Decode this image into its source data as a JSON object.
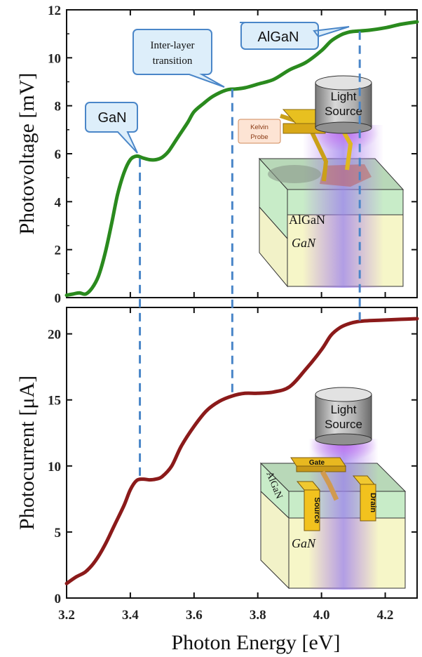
{
  "chart_data": [
    {
      "type": "line",
      "panel": "top",
      "ylabel": "Photovoltage [mV]",
      "xlim": [
        3.2,
        4.3
      ],
      "ylim": [
        0,
        12
      ],
      "yticks": [
        0,
        2,
        4,
        6,
        8,
        10,
        12
      ],
      "grid": false,
      "color": "#2a8a1e",
      "series": [
        {
          "x": [
            3.2,
            3.22,
            3.24,
            3.26,
            3.28,
            3.3,
            3.32,
            3.34,
            3.36,
            3.38,
            3.4,
            3.42,
            3.44,
            3.46,
            3.48,
            3.5,
            3.52,
            3.55,
            3.58,
            3.6,
            3.63,
            3.66,
            3.7,
            3.73,
            3.76,
            3.8,
            3.85,
            3.9,
            3.95,
            4.0,
            4.03,
            4.06,
            4.08,
            4.1,
            4.15,
            4.2,
            4.25,
            4.3
          ],
          "y": [
            0.1,
            0.15,
            0.2,
            0.15,
            0.4,
            0.9,
            1.8,
            3.0,
            4.3,
            5.2,
            5.75,
            5.9,
            5.82,
            5.75,
            5.75,
            5.85,
            6.1,
            6.7,
            7.3,
            7.75,
            8.1,
            8.4,
            8.65,
            8.7,
            8.75,
            8.9,
            9.1,
            9.5,
            9.8,
            10.3,
            10.7,
            10.95,
            11.05,
            11.1,
            11.15,
            11.25,
            11.4,
            11.5
          ]
        }
      ],
      "annotations": [
        {
          "text": "GaN",
          "x": 3.43
        },
        {
          "text": "Inter-layer transition",
          "x": 3.72
        },
        {
          "text": "AlGaN",
          "x": 4.12
        }
      ]
    },
    {
      "type": "line",
      "panel": "bottom",
      "ylabel": "Photocurrent [μA]",
      "xlabel": "Photon Energy [eV]",
      "xlim": [
        3.2,
        4.3
      ],
      "ylim": [
        0,
        22
      ],
      "xticks": [
        3.2,
        3.4,
        3.6,
        3.8,
        4.0,
        4.2
      ],
      "yticks": [
        0,
        5,
        10,
        15,
        20
      ],
      "grid": false,
      "color": "#8b1a1a",
      "series": [
        {
          "x": [
            3.2,
            3.23,
            3.26,
            3.29,
            3.32,
            3.35,
            3.38,
            3.4,
            3.42,
            3.44,
            3.46,
            3.48,
            3.5,
            3.53,
            3.56,
            3.6,
            3.64,
            3.68,
            3.72,
            3.76,
            3.8,
            3.85,
            3.9,
            3.95,
            4.0,
            4.03,
            4.06,
            4.09,
            4.12,
            4.15,
            4.2,
            4.25,
            4.3
          ],
          "y": [
            1.1,
            1.6,
            2.0,
            2.8,
            4.0,
            5.5,
            7.0,
            8.2,
            8.9,
            9.0,
            8.95,
            9.0,
            9.2,
            10.0,
            11.5,
            13.0,
            14.2,
            14.9,
            15.3,
            15.5,
            15.5,
            15.6,
            16.0,
            17.3,
            18.8,
            19.9,
            20.5,
            20.8,
            20.95,
            21.0,
            21.05,
            21.1,
            21.15
          ]
        }
      ]
    }
  ],
  "callouts": {
    "gan": "GaN",
    "inter_line1": "Inter-layer",
    "inter_line2": "transition",
    "algan": "AlGaN"
  },
  "inset_top": {
    "light_line1": "Light",
    "light_line2": "Source",
    "probe_line1": "Kelvin",
    "probe_line2": "Probe",
    "layer_algan": "AlGaN",
    "layer_gan": "GaN"
  },
  "inset_bottom": {
    "light_line1": "Light",
    "light_line2": "Source",
    "gate": "Gate",
    "source": "Source",
    "drain": "Drain",
    "layer_algan": "AlGaN",
    "layer_gan": "GaN"
  },
  "colors": {
    "photovoltage_line": "#2a8a1e",
    "photocurrent_line": "#8b1a1a",
    "dashed_markers": "#4a86c8",
    "callout_fill": "#ddeefa",
    "callout_stroke": "#4a86c8",
    "algan_layer": "#c8ecc8",
    "gan_layer": "#f6f6c8",
    "contact_gold": "#e8b820",
    "light_glow": "#b070e8"
  }
}
